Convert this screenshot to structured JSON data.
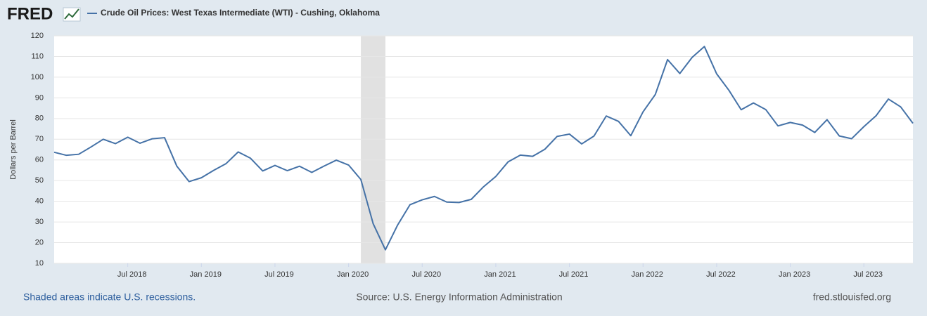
{
  "logo": "FRED",
  "chart_data": {
    "type": "line",
    "title": "Crude Oil Prices: West Texas Intermediate (WTI) - Cushing, Oklahoma",
    "y_label": "Dollars per Barrel",
    "x": [
      "2018-01",
      "2018-02",
      "2018-03",
      "2018-04",
      "2018-05",
      "2018-06",
      "2018-07",
      "2018-08",
      "2018-09",
      "2018-10",
      "2018-11",
      "2018-12",
      "2019-01",
      "2019-02",
      "2019-03",
      "2019-04",
      "2019-05",
      "2019-06",
      "2019-07",
      "2019-08",
      "2019-09",
      "2019-10",
      "2019-11",
      "2019-12",
      "2020-01",
      "2020-02",
      "2020-03",
      "2020-04",
      "2020-05",
      "2020-06",
      "2020-07",
      "2020-08",
      "2020-09",
      "2020-10",
      "2020-11",
      "2020-12",
      "2021-01",
      "2021-02",
      "2021-03",
      "2021-04",
      "2021-05",
      "2021-06",
      "2021-07",
      "2021-08",
      "2021-09",
      "2021-10",
      "2021-11",
      "2021-12",
      "2022-01",
      "2022-02",
      "2022-03",
      "2022-04",
      "2022-05",
      "2022-06",
      "2022-07",
      "2022-08",
      "2022-09",
      "2022-10",
      "2022-11",
      "2022-12",
      "2023-01",
      "2023-02",
      "2023-03",
      "2023-04",
      "2023-05",
      "2023-06",
      "2023-07",
      "2023-08",
      "2023-09",
      "2023-10",
      "2023-11"
    ],
    "series": [
      {
        "name": "Crude Oil Prices: West Texas Intermediate (WTI) - Cushing, Oklahoma",
        "color": "#4572a7",
        "values": [
          63.7,
          62.23,
          62.73,
          66.25,
          69.98,
          67.87,
          70.98,
          68.06,
          70.23,
          70.75,
          56.96,
          49.52,
          51.38,
          54.95,
          58.15,
          63.86,
          60.83,
          54.66,
          57.35,
          54.81,
          56.95,
          53.96,
          57.03,
          59.88,
          57.52,
          50.54,
          29.21,
          16.55,
          28.56,
          38.31,
          40.71,
          42.34,
          39.63,
          39.4,
          40.94,
          47.02,
          52,
          59.04,
          62.33,
          61.72,
          65.17,
          71.38,
          72.49,
          67.73,
          71.54,
          81.22,
          78.65,
          71.71,
          83.22,
          91.64,
          108.5,
          101.78,
          109.55,
          114.84,
          101.62,
          93.67,
          84.26,
          87.55,
          84.37,
          76.44,
          78.12,
          76.83,
          73.28,
          79.45,
          71.58,
          70.25,
          76.07,
          81.39,
          89.43,
          85.64,
          77.69
        ]
      }
    ],
    "xlim": [
      "2018-01",
      "2023-11"
    ],
    "xticks": [
      {
        "value": "2018-07",
        "label": "Jul 2018"
      },
      {
        "value": "2019-01",
        "label": "Jan 2019"
      },
      {
        "value": "2019-07",
        "label": "Jul 2019"
      },
      {
        "value": "2020-01",
        "label": "Jan 2020"
      },
      {
        "value": "2020-07",
        "label": "Jul 2020"
      },
      {
        "value": "2021-01",
        "label": "Jan 2021"
      },
      {
        "value": "2021-07",
        "label": "Jul 2021"
      },
      {
        "value": "2022-01",
        "label": "Jan 2022"
      },
      {
        "value": "2022-07",
        "label": "Jul 2022"
      },
      {
        "value": "2023-01",
        "label": "Jan 2023"
      },
      {
        "value": "2023-07",
        "label": "Jul 2023"
      }
    ],
    "ylim": [
      10,
      120
    ],
    "yticks": [
      10,
      20,
      30,
      40,
      50,
      60,
      70,
      80,
      90,
      100,
      110,
      120
    ],
    "grid": true,
    "recessions": [
      {
        "start": "2020-02",
        "end": "2020-04"
      }
    ],
    "recession_note": "Shaded areas indicate U.S. recessions.",
    "source": "Source: U.S. Energy Information Administration",
    "site": "fred.stlouisfed.org"
  }
}
